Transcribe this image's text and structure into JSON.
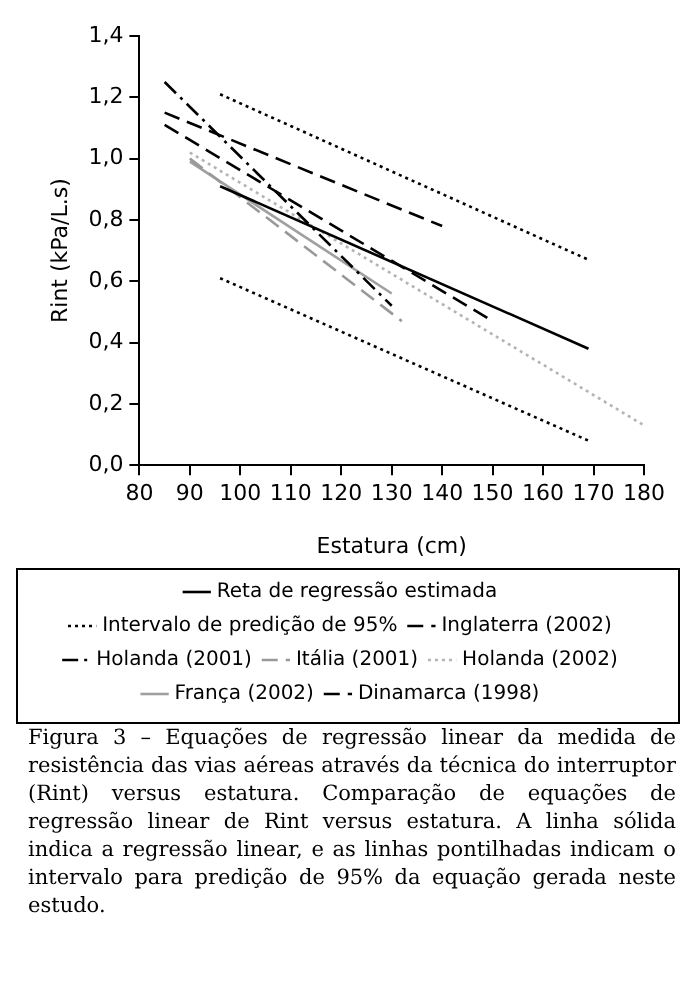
{
  "chart_data": {
    "type": "line",
    "xlabel": "Estatura (cm)",
    "ylabel": "Rint (kPa/L.s)",
    "xlim": [
      80,
      180
    ],
    "xticks": [
      80,
      90,
      100,
      110,
      120,
      130,
      140,
      150,
      160,
      170,
      180
    ],
    "ylim": [
      0,
      1.4
    ],
    "yticks": [
      {
        "value": 0,
        "label": "0,0"
      },
      {
        "value": 0.2,
        "label": "0,2"
      },
      {
        "value": 0.4,
        "label": "0,4"
      },
      {
        "value": 0.6,
        "label": "0,6"
      },
      {
        "value": 0.8,
        "label": "0,8"
      },
      {
        "value": 1,
        "label": "1,0"
      },
      {
        "value": 1.2,
        "label": "1,2"
      },
      {
        "value": 1.4,
        "label": "1,4"
      }
    ],
    "grid": false,
    "legend": "bottom",
    "marker": "none",
    "series": [
      {
        "name": "Reta de regressão estimada",
        "color": "#000000",
        "line_style": "solid",
        "x": [
          96,
          169
        ],
        "values": [
          0.91,
          0.38
        ]
      },
      {
        "name": "Intervalo de predição de 95%",
        "color": "#000000",
        "line_style": "dotted",
        "x": [
          96,
          169
        ],
        "values": [
          1.21,
          0.67
        ]
      },
      {
        "color": "#000000",
        "line_style": "dotted",
        "x": [
          96,
          169
        ],
        "values": [
          0.61,
          0.08
        ]
      },
      {
        "name": "Inglaterra (2002)",
        "color": "#000000",
        "line_style": "dashed",
        "x": [
          85,
          150
        ],
        "values": [
          1.11,
          0.47
        ]
      },
      {
        "name": "Holanda (2001)",
        "color": "#000000",
        "line_style": "dashdot",
        "x": [
          85,
          130
        ],
        "values": [
          1.25,
          0.52
        ]
      },
      {
        "name": "Itália (2001)",
        "color": "#999999",
        "line_style": "dashed",
        "x": [
          90,
          132
        ],
        "values": [
          1.0,
          0.47
        ]
      },
      {
        "name": "Holanda (2002)",
        "color": "#b4b4b4",
        "line_style": "dotted",
        "x": [
          90,
          180
        ],
        "values": [
          1.02,
          0.13
        ]
      },
      {
        "name": "França (2002)",
        "color": "#a0a0a0",
        "line_style": "solid",
        "x": [
          90,
          130
        ],
        "values": [
          0.99,
          0.56
        ]
      },
      {
        "name": "Dinamarca (1998)",
        "color": "#000000",
        "line_style": "dashed",
        "x": [
          85,
          140
        ],
        "values": [
          1.15,
          0.78
        ]
      }
    ],
    "annotations": [
      "Figura 3 – Equações de regressão linear da medida de resistência das vias aéreas através da técnica do interruptor (Rint) versus estatura. Comparação de equações de regressão linear de Rint versus estatura. A linha sólida indica a regressão linear, e as linhas pontilhadas indicam o intervalo para predição de 95% da equação gerada neste estudo."
    ]
  }
}
